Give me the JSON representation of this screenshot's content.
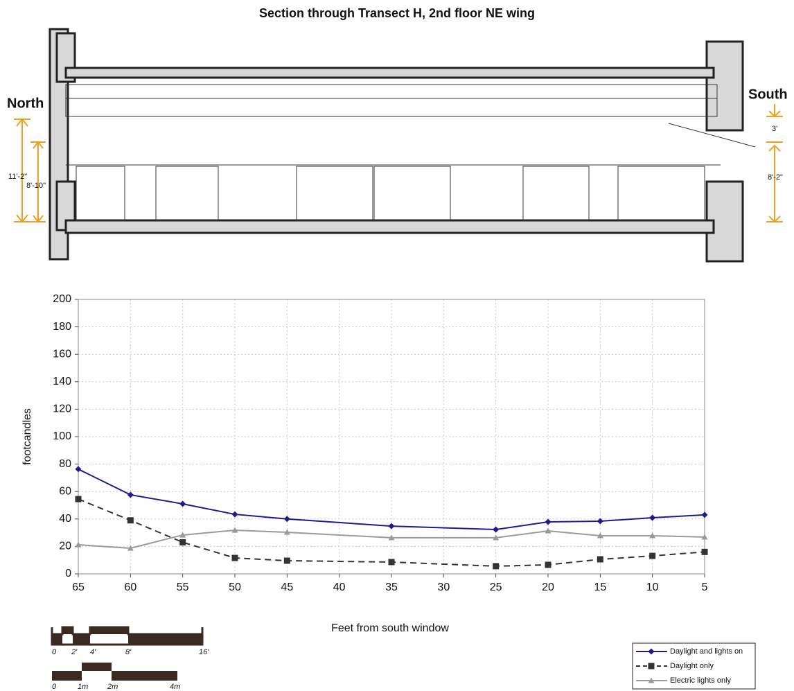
{
  "chart_data": {
    "type": "line",
    "title": "Section through Transect H, 2nd floor NE wing",
    "x_label": "Feet from south window",
    "y_label": "footcandles",
    "x": [
      65,
      60,
      55,
      50,
      45,
      35,
      25,
      20,
      15,
      10,
      5
    ],
    "series": [
      {
        "name": "Daylight and lights on",
        "color": "#1c1c8a",
        "marker": "diamond",
        "dash": false,
        "values": [
          76.3,
          57.6,
          51,
          43.4,
          40,
          34.8,
          32.3,
          37.9,
          38.4,
          40.9,
          43
        ]
      },
      {
        "name": "Daylight only",
        "color": "#333333",
        "marker": "square",
        "dash": true,
        "values": [
          54.5,
          39,
          23,
          11.6,
          9.6,
          8.6,
          5.6,
          6.6,
          10.6,
          13.1,
          16
        ]
      },
      {
        "name": "Electric lights only",
        "color": "#9a9a9a",
        "marker": "triangle",
        "dash": false,
        "values": [
          21.2,
          18.7,
          28.3,
          31.8,
          30.3,
          26.3,
          26.3,
          31.3,
          27.8,
          27.8,
          26.8
        ]
      }
    ],
    "xlim": [
      65,
      5
    ],
    "xticks": [
      65,
      60,
      55,
      50,
      45,
      40,
      35,
      30,
      25,
      20,
      15,
      10,
      5
    ],
    "ylim": [
      0,
      200
    ],
    "yticks": [
      0,
      20,
      40,
      60,
      80,
      100,
      120,
      140,
      160,
      180,
      200
    ],
    "grid": true,
    "legend": "bottom-right"
  },
  "section": {
    "north": "North",
    "south": "South",
    "dim_left_outer": "11'-2\"",
    "dim_left_inner": "8'-10\"",
    "dim_right_top": "3'",
    "dim_right_bottom": "8'-2\""
  },
  "scale_bar": {
    "feet": [
      "0",
      "2'",
      "4'",
      "8'",
      "16'"
    ],
    "meters": [
      "0",
      "1m",
      "2m",
      "4m"
    ]
  }
}
